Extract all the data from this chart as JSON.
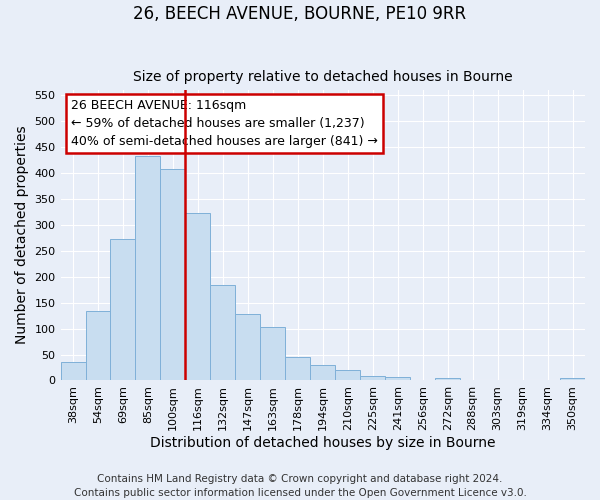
{
  "title": "26, BEECH AVENUE, BOURNE, PE10 9RR",
  "subtitle": "Size of property relative to detached houses in Bourne",
  "xlabel": "Distribution of detached houses by size in Bourne",
  "ylabel": "Number of detached properties",
  "bar_labels": [
    "38sqm",
    "54sqm",
    "69sqm",
    "85sqm",
    "100sqm",
    "116sqm",
    "132sqm",
    "147sqm",
    "163sqm",
    "178sqm",
    "194sqm",
    "210sqm",
    "225sqm",
    "241sqm",
    "256sqm",
    "272sqm",
    "288sqm",
    "303sqm",
    "319sqm",
    "334sqm",
    "350sqm"
  ],
  "bar_values": [
    35,
    133,
    272,
    433,
    407,
    323,
    184,
    128,
    103,
    45,
    30,
    21,
    9,
    6,
    0,
    5,
    0,
    0,
    0,
    0,
    4
  ],
  "bar_color": "#c8ddf0",
  "bar_edge_color": "#7fb0d8",
  "marker_index": 5,
  "marker_label": "116sqm",
  "marker_line_color": "#cc0000",
  "annotation_title": "26 BEECH AVENUE: 116sqm",
  "annotation_line1": "← 59% of detached houses are smaller (1,237)",
  "annotation_line2": "40% of semi-detached houses are larger (841) →",
  "annotation_box_color": "#ffffff",
  "annotation_box_edge_color": "#cc0000",
  "ylim": [
    0,
    560
  ],
  "yticks": [
    0,
    50,
    100,
    150,
    200,
    250,
    300,
    350,
    400,
    450,
    500,
    550
  ],
  "footer1": "Contains HM Land Registry data © Crown copyright and database right 2024.",
  "footer2": "Contains public sector information licensed under the Open Government Licence v3.0.",
  "background_color": "#e8eef8",
  "grid_color": "#ffffff",
  "title_fontsize": 12,
  "subtitle_fontsize": 10,
  "axis_label_fontsize": 10,
  "tick_fontsize": 8,
  "footer_fontsize": 7.5
}
